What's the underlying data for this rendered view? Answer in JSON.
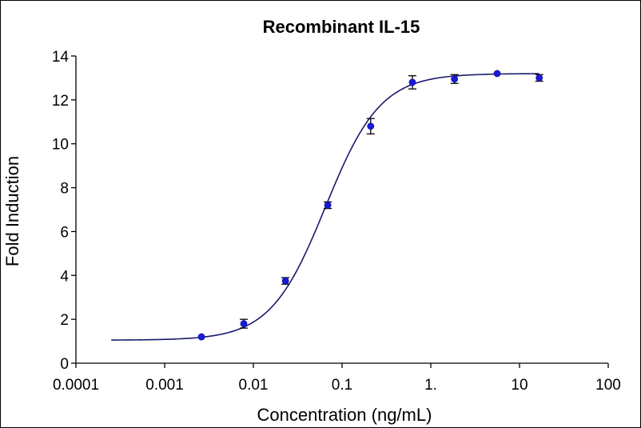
{
  "chart_data": {
    "type": "scatter",
    "title": "Recombinant IL-15",
    "xlabel": "Concentration (ng/mL)",
    "ylabel": "Fold Induction",
    "xscale": "log",
    "xlim": [
      0.0001,
      100
    ],
    "ylim": [
      0,
      14
    ],
    "x_ticks": [
      0.0001,
      0.001,
      0.01,
      0.1,
      1,
      10,
      100
    ],
    "x_tick_labels": [
      "0.0001",
      "0.001",
      "0.01",
      "0.1",
      "1.",
      "10",
      "100"
    ],
    "y_ticks": [
      0,
      2,
      4,
      6,
      8,
      10,
      12,
      14
    ],
    "y_tick_labels": [
      "0",
      "2",
      "4",
      "6",
      "8",
      "10",
      "12",
      "14"
    ],
    "grid": false,
    "colors": {
      "points": "#1a1adb",
      "curve": "#1a1a6e",
      "error_bars": "#000000"
    },
    "series": [
      {
        "points": [
          {
            "x": 0.0026,
            "y": 1.2,
            "err": 0.05
          },
          {
            "x": 0.0078,
            "y": 1.8,
            "err": 0.2
          },
          {
            "x": 0.023,
            "y": 3.75,
            "err": 0.15
          },
          {
            "x": 0.069,
            "y": 7.2,
            "err": 0.15
          },
          {
            "x": 0.21,
            "y": 10.8,
            "err": 0.35
          },
          {
            "x": 0.62,
            "y": 12.8,
            "err": 0.3
          },
          {
            "x": 1.85,
            "y": 12.95,
            "err": 0.2
          },
          {
            "x": 5.6,
            "y": 13.2,
            "err": 0.05
          },
          {
            "x": 16.7,
            "y": 13.0,
            "err": 0.15
          }
        ]
      }
    ],
    "fit_curve": {
      "model": "4PL",
      "bottom": 1.05,
      "top": 13.2,
      "ec50": 0.065,
      "hill": 1.4,
      "x_range": [
        0.00025,
        16.7
      ]
    }
  }
}
